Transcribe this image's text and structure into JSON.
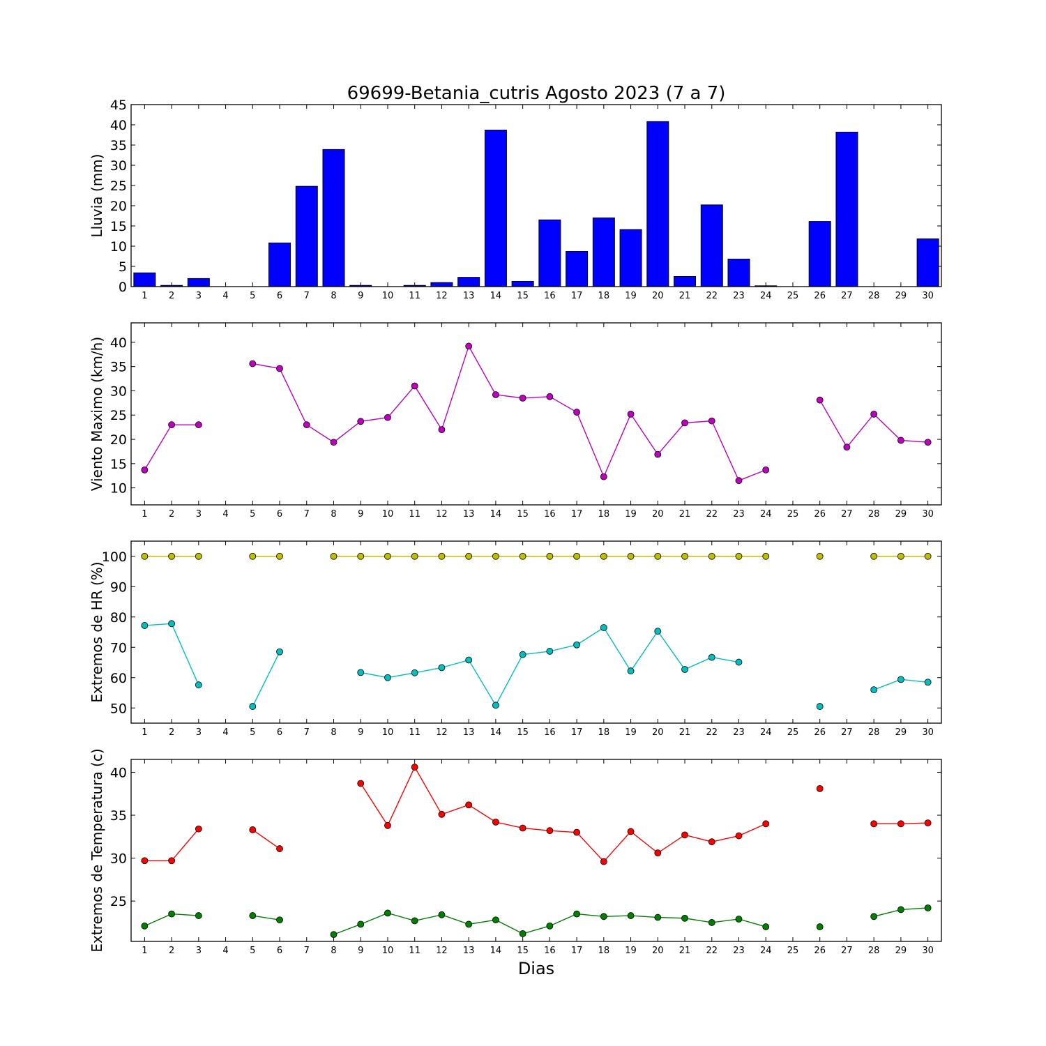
{
  "title": "69699-Betania_cutris Agosto 2023  (7 a 7)",
  "xlabel": "Dias",
  "days": [
    1,
    2,
    3,
    4,
    5,
    6,
    7,
    8,
    9,
    10,
    11,
    12,
    13,
    14,
    15,
    16,
    17,
    18,
    19,
    20,
    21,
    22,
    23,
    24,
    25,
    26,
    27,
    28,
    29,
    30
  ],
  "colors": {
    "rain": "#0000ff",
    "wind": "#bf00bf",
    "hr_max": "#bfbf00",
    "hr_min": "#00bfbf",
    "temp_max": "#ff0000",
    "temp_min": "#007f00"
  },
  "chart_data": [
    {
      "type": "bar",
      "ylabel": "Lluvia (mm)",
      "ylim": [
        0,
        45
      ],
      "yticks": [
        0,
        5,
        10,
        15,
        20,
        25,
        30,
        35,
        40,
        45
      ],
      "categories": [
        1,
        2,
        3,
        4,
        5,
        6,
        7,
        8,
        9,
        10,
        11,
        12,
        13,
        14,
        15,
        16,
        17,
        18,
        19,
        20,
        21,
        22,
        23,
        24,
        25,
        26,
        27,
        28,
        29,
        30
      ],
      "series": [
        {
          "values": [
            3.4,
            0.3,
            2.0,
            0,
            0,
            10.8,
            24.8,
            33.9,
            0.3,
            0,
            0.3,
            1.0,
            2.3,
            38.7,
            1.3,
            16.5,
            8.7,
            17.0,
            14.1,
            40.8,
            2.5,
            20.2,
            6.8,
            0.2,
            0,
            16.1,
            38.2,
            0,
            0,
            11.8
          ]
        }
      ]
    },
    {
      "type": "line",
      "ylabel": "Viento Maximo (km/h)",
      "ylim": [
        6.5,
        44
      ],
      "yticks": [
        10,
        15,
        20,
        25,
        30,
        35,
        40
      ],
      "series": [
        {
          "values": [
            13.7,
            23.0,
            23.0,
            null,
            35.6,
            34.6,
            23.0,
            19.4,
            23.7,
            24.5,
            31.0,
            22.0,
            39.2,
            29.2,
            28.5,
            28.8,
            25.6,
            12.3,
            25.2,
            16.9,
            23.4,
            23.8,
            11.5,
            13.7,
            null,
            28.1,
            18.4,
            25.2,
            19.8,
            19.4
          ]
        }
      ]
    },
    {
      "type": "line",
      "ylabel": "Extremos de HR (%)",
      "ylim": [
        45,
        105
      ],
      "yticks": [
        50,
        60,
        70,
        80,
        90,
        100
      ],
      "series": [
        {
          "values": [
            100,
            100,
            100,
            null,
            100,
            100,
            null,
            100,
            100,
            100,
            100,
            100,
            100,
            100,
            100,
            100,
            100,
            100,
            100,
            100,
            100,
            100,
            100,
            100,
            null,
            100,
            null,
            100,
            100,
            100
          ]
        },
        {
          "values": [
            77.2,
            77.8,
            57.6,
            null,
            50.5,
            68.5,
            null,
            null,
            61.7,
            60.0,
            61.6,
            63.3,
            65.8,
            50.9,
            67.6,
            68.7,
            70.8,
            76.5,
            62.2,
            75.3,
            62.7,
            66.7,
            65.1,
            null,
            null,
            50.5,
            null,
            56.0,
            59.4,
            58.5
          ]
        }
      ]
    },
    {
      "type": "line",
      "ylabel": "Extremos de Temperatura (c)",
      "ylim": [
        20.3,
        41.5
      ],
      "yticks": [
        25,
        30,
        35,
        40
      ],
      "series": [
        {
          "values": [
            29.7,
            29.7,
            33.4,
            null,
            33.3,
            31.1,
            null,
            null,
            38.7,
            33.8,
            40.6,
            35.1,
            36.2,
            34.2,
            33.5,
            33.2,
            33.0,
            29.6,
            33.1,
            30.6,
            32.7,
            31.9,
            32.6,
            34.0,
            null,
            38.1,
            null,
            34.0,
            34.0,
            34.1
          ]
        },
        {
          "values": [
            22.1,
            23.5,
            23.3,
            null,
            23.3,
            22.8,
            null,
            21.1,
            22.3,
            23.6,
            22.7,
            23.4,
            22.3,
            22.8,
            21.2,
            22.1,
            23.5,
            23.2,
            23.3,
            23.1,
            23.0,
            22.5,
            22.9,
            22.0,
            null,
            22.0,
            null,
            23.2,
            24.0,
            24.2
          ]
        }
      ]
    }
  ]
}
